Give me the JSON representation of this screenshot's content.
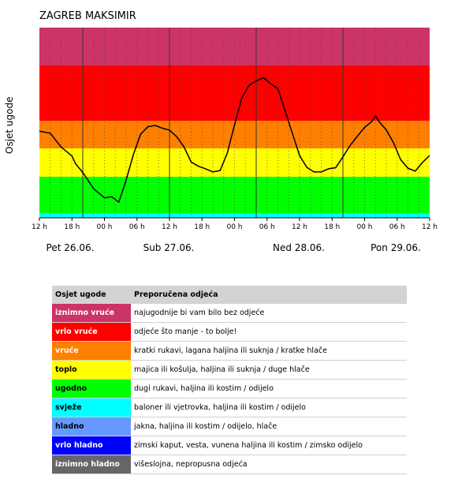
{
  "chart_data": {
    "type": "line",
    "title": "ZAGREB MAKSIMIR",
    "ylabel": "Osjet ugode",
    "x_unit": "hours from Pet 26.06. 12 h",
    "x_ticks": [
      "12 h",
      "18 h",
      "00 h",
      "06 h",
      "12 h",
      "18 h",
      "00 h",
      "06 h",
      "12 h",
      "18 h",
      "00 h",
      "06 h",
      "12 h"
    ],
    "day_labels": [
      "Pet 26.06.",
      "Sub 27.06.",
      "Ned 28.06.",
      "Pon 29.06."
    ],
    "bands": [
      {
        "name": "svježe",
        "color": "#00ffff"
      },
      {
        "name": "ugodno",
        "color": "#00ff00"
      },
      {
        "name": "toplo",
        "color": "#ffff00"
      },
      {
        "name": "vruće",
        "color": "#ff8000"
      },
      {
        "name": "vrlo vruće",
        "color": "#ff0000"
      },
      {
        "name": "iznimno vruće",
        "color": "#cc3366"
      }
    ],
    "series": [
      {
        "color": "#000000",
        "x": [
          0,
          3,
          6,
          9,
          10,
          12,
          15,
          18,
          20,
          22,
          24,
          26,
          28,
          30,
          32,
          34,
          36,
          38,
          40,
          42,
          44,
          46,
          48,
          50,
          52,
          54,
          56,
          58,
          60,
          62,
          64,
          66,
          68,
          70,
          72,
          74,
          76,
          78,
          80,
          82,
          84,
          86,
          88,
          90,
          92,
          93,
          94,
          96,
          98,
          100,
          102,
          104,
          106,
          108
        ],
        "y": [
          3.62,
          3.55,
          3.05,
          2.73,
          2.46,
          2.15,
          1.67,
          1.42,
          1.45,
          1.3,
          1.91,
          2.78,
          3.51,
          3.78,
          3.83,
          3.73,
          3.66,
          3.42,
          3.06,
          2.52,
          2.37,
          2.28,
          2.17,
          2.22,
          2.83,
          3.85,
          4.41,
          4.64,
          4.72,
          4.78,
          4.67,
          4.58,
          4.18,
          3.55,
          2.75,
          2.33,
          2.17,
          2.17,
          2.28,
          2.32,
          2.7,
          3.11,
          3.44,
          3.76,
          3.97,
          4.09,
          3.97,
          3.67,
          3.2,
          2.6,
          2.3,
          2.2,
          2.5,
          2.75
        ]
      }
    ]
  },
  "legend": {
    "header_level": "Osjet ugode",
    "header_advice": "Preporučena odjeća",
    "rows": [
      {
        "level": "iznimno vruće",
        "advice": "najugodnije bi vam bilo bez odjeće",
        "bg": "#cc3366",
        "fg": "#ffffff"
      },
      {
        "level": "vrlo vruće",
        "advice": "odjeće što manje - to bolje!",
        "bg": "#ff0000",
        "fg": "#ffffff"
      },
      {
        "level": "vruće",
        "advice": "kratki rukavi, lagana haljina ili suknja / kratke hlače",
        "bg": "#ff8000",
        "fg": "#ffffff"
      },
      {
        "level": "toplo",
        "advice": "majica ili košulja, haljina ili suknja / duge hlače",
        "bg": "#ffff00",
        "fg": "#000000"
      },
      {
        "level": "ugodno",
        "advice": "dugi rukavi, haljina ili kostim / odijelo",
        "bg": "#00ff00",
        "fg": "#000000"
      },
      {
        "level": "svježe",
        "advice": "baloner ili vjetrovka, haljina ili kostim / odijelo",
        "bg": "#00ffff",
        "fg": "#000000"
      },
      {
        "level": "hladno",
        "advice": "jakna, haljina ili kostim / odijelo, hlače",
        "bg": "#6699ff",
        "fg": "#000000"
      },
      {
        "level": "vrlo hladno",
        "advice": "zimski kaput, vesta, vunena haljina ili kostim / zimsko odijelo",
        "bg": "#0000ff",
        "fg": "#ffffff"
      },
      {
        "level": "iznimno hladno",
        "advice": "višeslojna, nepropusna odjeća",
        "bg": "#666666",
        "fg": "#ffffff"
      }
    ]
  }
}
